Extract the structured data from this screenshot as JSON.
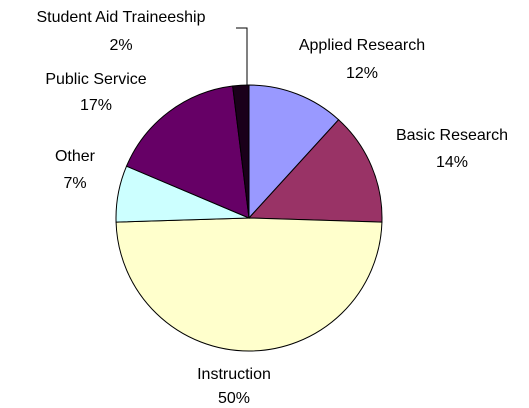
{
  "chart_data": {
    "type": "pie",
    "categories": [
      "Applied Research",
      "Basic Research",
      "Instruction",
      "Other",
      "Public Service",
      "Student Aid Traineeship"
    ],
    "values": [
      12,
      14,
      50,
      7,
      17,
      2
    ],
    "value_labels": [
      "12%",
      "14%",
      "50%",
      "7%",
      "17%",
      "2%"
    ],
    "colors": [
      "#9999ff",
      "#993366",
      "#ffffcc",
      "#ccffff",
      "#660066",
      "#1a001a"
    ]
  }
}
